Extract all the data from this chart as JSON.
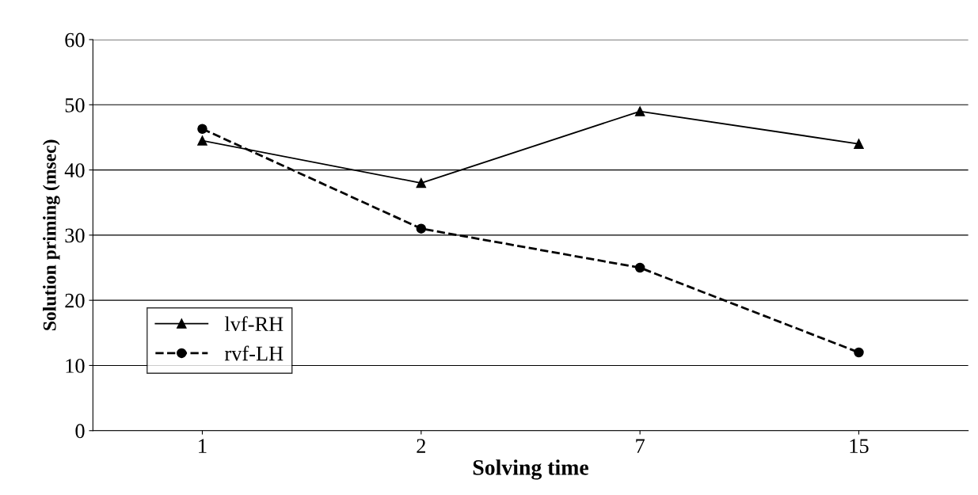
{
  "chart_data": {
    "type": "line",
    "xlabel": "Solving time",
    "ylabel": "Solution priming (msec)",
    "categories": [
      "1",
      "2",
      "7",
      "15"
    ],
    "ylim": [
      0,
      60
    ],
    "yticks": [
      0,
      10,
      20,
      30,
      40,
      50,
      60
    ],
    "grid": "y",
    "legend": "lower left",
    "series": [
      {
        "name": "lvf-RH",
        "color": "#000000",
        "values": [
          44.5,
          38,
          49,
          44
        ],
        "marker": "triangle",
        "line_style": "solid"
      },
      {
        "name": "rvf-LH",
        "color": "#000000",
        "values": [
          46.3,
          31,
          25,
          12
        ],
        "marker": "circle",
        "line_style": "dashed"
      }
    ]
  }
}
